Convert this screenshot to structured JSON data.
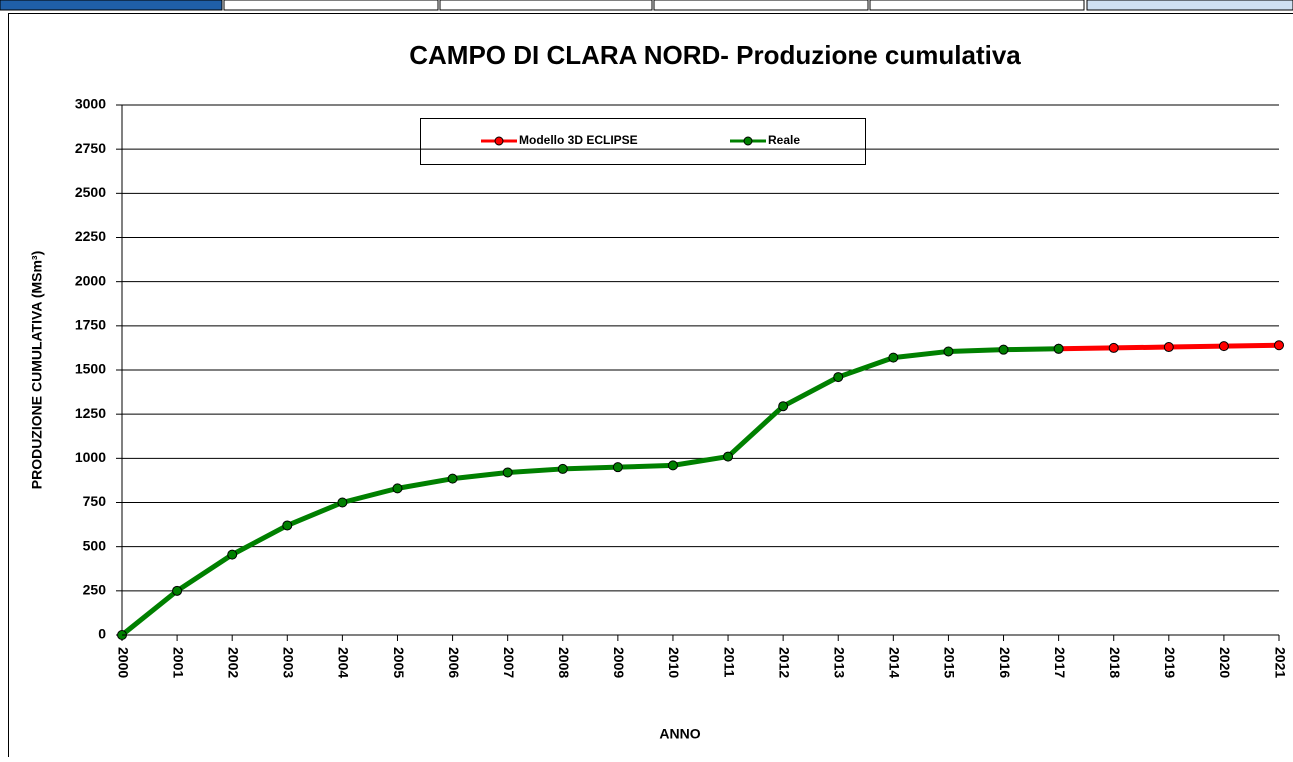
{
  "chart_data": {
    "type": "line",
    "title": "CAMPO DI CLARA NORD- Produzione cumulativa",
    "x_label": "ANNO",
    "y_label": "PRODUZIONE CUMULATIVA (MSm³)",
    "categories": [
      "2000",
      "2001",
      "2002",
      "2003",
      "2004",
      "2005",
      "2006",
      "2007",
      "2008",
      "2009",
      "2010",
      "2011",
      "2012",
      "2013",
      "2014",
      "2015",
      "2016",
      "2017",
      "2018",
      "2019",
      "2020",
      "2021"
    ],
    "series": [
      {
        "name": "Modello 3D ECLIPSE",
        "color": "#ff0000",
        "values": [
          null,
          null,
          null,
          null,
          null,
          null,
          null,
          null,
          null,
          null,
          null,
          null,
          null,
          null,
          null,
          null,
          null,
          1620,
          1625,
          1630,
          1635,
          1640
        ]
      },
      {
        "name": "Reale",
        "color": "#008000",
        "values": [
          0,
          250,
          455,
          620,
          750,
          830,
          885,
          920,
          940,
          950,
          960,
          1010,
          1295,
          1460,
          1570,
          1605,
          1615,
          1620,
          null,
          null,
          null,
          null
        ]
      }
    ],
    "ylim": [
      0,
      3000
    ],
    "yticks": [
      0,
      250,
      500,
      750,
      1000,
      1250,
      1500,
      1750,
      2000,
      2250,
      2500,
      2750,
      3000
    ],
    "grid": true,
    "legend": "top"
  }
}
